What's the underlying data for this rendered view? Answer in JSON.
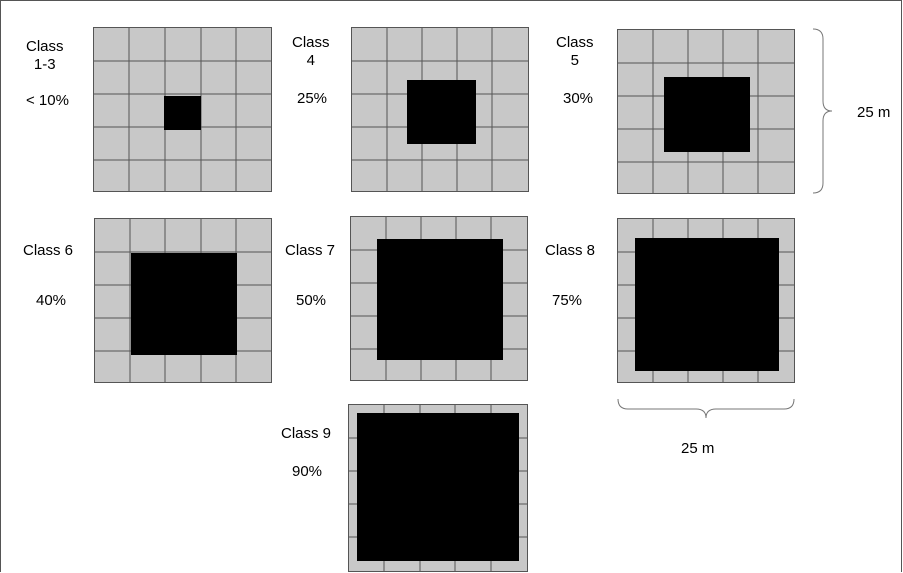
{
  "classes": [
    {
      "id": "c13",
      "name_lines": [
        "Class",
        "1-3"
      ],
      "percent": "< 10%",
      "cover_fraction": 0.1
    },
    {
      "id": "c4",
      "name_lines": [
        "Class",
        "4"
      ],
      "percent": "25%",
      "cover_fraction": 0.25
    },
    {
      "id": "c5",
      "name_lines": [
        "Class",
        "5"
      ],
      "percent": "30%",
      "cover_fraction": 0.3
    },
    {
      "id": "c6",
      "name_lines": [
        "Class 6"
      ],
      "percent": "40%",
      "cover_fraction": 0.4
    },
    {
      "id": "c7",
      "name_lines": [
        "Class 7"
      ],
      "percent": "50%",
      "cover_fraction": 0.5
    },
    {
      "id": "c8",
      "name_lines": [
        "Class 8"
      ],
      "percent": "75%",
      "cover_fraction": 0.75
    },
    {
      "id": "c9",
      "name_lines": [
        "Class 9"
      ],
      "percent": "90%",
      "cover_fraction": 0.9
    }
  ],
  "dimension_vertical": "25 m",
  "dimension_horizontal": "25 m",
  "colors": {
    "cell_fill": "#c8c8c8",
    "grid_line": "#555555",
    "cover": "#000000"
  }
}
